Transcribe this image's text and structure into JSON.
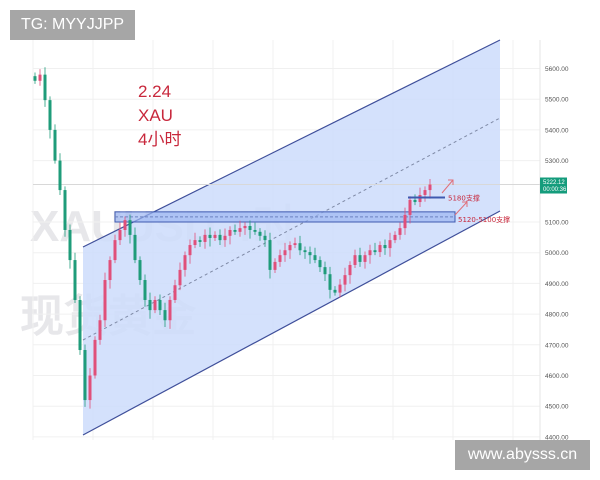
{
  "watermark": {
    "line1": "XAUUSD,4时",
    "line2": "现货黄金"
  },
  "badges": {
    "top_left": "TG: MYYJJPP",
    "bottom_right": "www.abysss.cn"
  },
  "annotation": {
    "date": "2.24",
    "symbol": "XAU",
    "timeframe": "4小时"
  },
  "chart_data": {
    "type": "candlestick",
    "title": "",
    "y_ticks": [
      "5600.00",
      "5500.00",
      "5400.00",
      "5300.00",
      "5100.00",
      "5000.00",
      "4900.00",
      "4800.00",
      "4700.00",
      "4600.00",
      "4500.00",
      "4400.00"
    ],
    "ylim": [
      4400,
      5650
    ],
    "grid": true,
    "closes": [
      5560,
      5580,
      5497,
      5400,
      5300,
      5204,
      5074,
      4976,
      4846,
      4683,
      4520,
      4600,
      4716,
      4780,
      4911,
      4976,
      5041,
      5074,
      5106,
      5058,
      4976,
      4911,
      4846,
      4813,
      4846,
      4813,
      4780,
      4846,
      4894,
      4944,
      4992,
      5025,
      5041,
      5035,
      5058,
      5048,
      5058,
      5041,
      5055,
      5074,
      5068,
      5080,
      5087,
      5074,
      5068,
      5055,
      5041,
      4944,
      4970,
      4992,
      5008,
      5025,
      5031,
      5008,
      5002,
      4992,
      4976,
      4953,
      4930,
      4879,
      4870,
      4896,
      4927,
      4960,
      4992,
      4970,
      4992,
      5008,
      5002,
      5025,
      5015,
      5041,
      5058,
      5080,
      5123,
      5172,
      5165,
      5188,
      5204,
      5222
    ],
    "current_price": {
      "price": "5222.12",
      "countdown": "00:00:36"
    },
    "support_levels": [
      {
        "label": "5180支撑",
        "price": 5180
      },
      {
        "label": "5120-5100支撑",
        "range": [
          5100,
          5120
        ]
      }
    ],
    "colors": {
      "up": "#e0507a",
      "down": "#1f9c7a",
      "channel_fill": "#cddcfb",
      "channel_line": "#3f4f9a",
      "label": "#c8283c",
      "price_tag": "#149c7c"
    }
  }
}
